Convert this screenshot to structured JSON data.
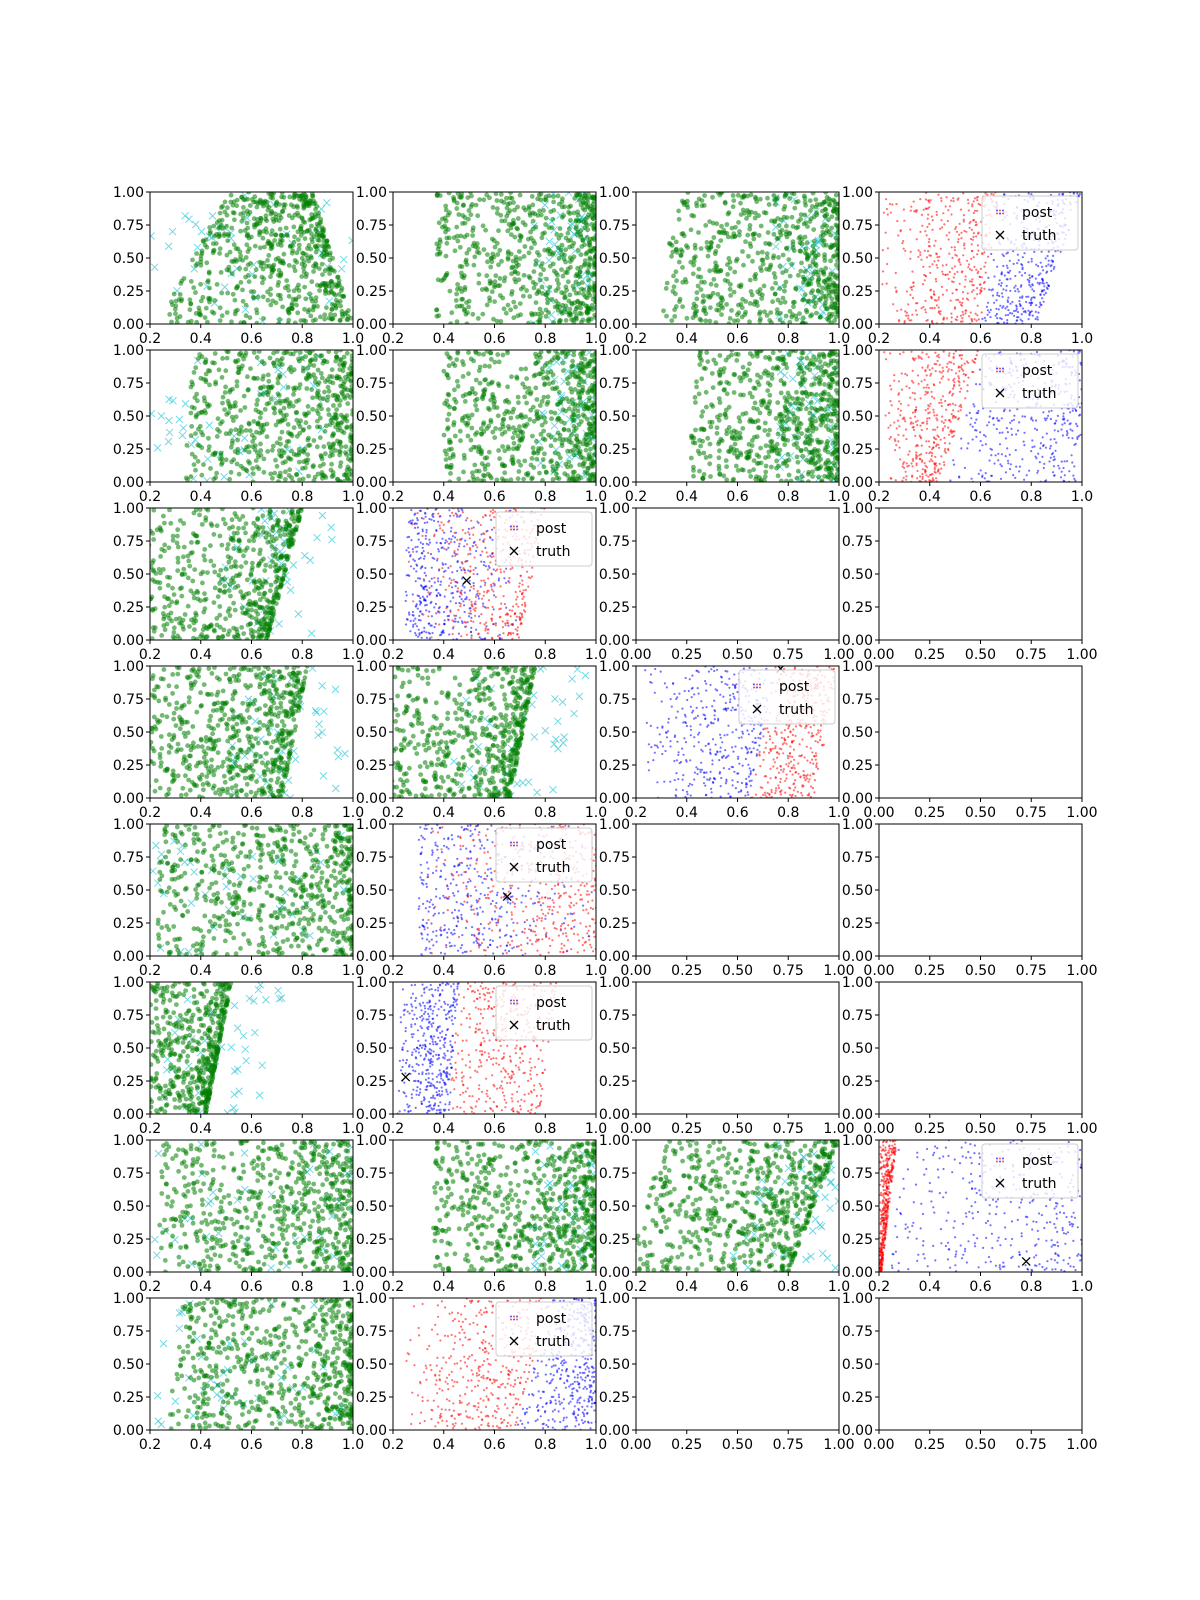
{
  "figure": {
    "layout": "8 rows x 4 columns grid of scatter panels"
  },
  "legend_labels": {
    "post": "post",
    "truth": "truth"
  },
  "colors": {
    "green": "#008000",
    "cyan": "#17becf",
    "red": "#ff0000",
    "blue": "#0000ff",
    "truth": "#000000"
  },
  "chart_data": [
    {
      "row": 0,
      "col": 0,
      "type": "scatter",
      "kind": "ppc",
      "xlim": [
        0.2,
        1.0
      ],
      "ylim": [
        0,
        1
      ],
      "xticks": [
        "0.2",
        "0.4",
        "0.6",
        "0.8",
        "1.0"
      ],
      "yticks": [
        "0.00",
        "0.25",
        "0.50",
        "0.75",
        "1.00"
      ],
      "green_region": {
        "left": [
          0.38,
          0.66
        ],
        "right": [
          1.0,
          0.84
        ],
        "density": 0.5
      },
      "cyan_region": "spread"
    },
    {
      "row": 0,
      "col": 1,
      "type": "scatter",
      "kind": "ppc",
      "xlim": [
        0.2,
        1.0
      ],
      "ylim": [
        0,
        1
      ],
      "xticks": [
        "0.2",
        "0.4",
        "0.6",
        "0.8",
        "1.0"
      ],
      "yticks": [
        "0.00",
        "0.25",
        "0.50",
        "0.75",
        "1.00"
      ],
      "green_region": {
        "left": [
          0.52,
          0.52
        ],
        "right": [
          1.0,
          1.0
        ],
        "density": 0.5
      },
      "cyan_region": "right"
    },
    {
      "row": 0,
      "col": 2,
      "type": "scatter",
      "kind": "ppc",
      "xlim": [
        0.2,
        1.0
      ],
      "ylim": [
        0,
        1
      ],
      "xticks": [
        "0.2",
        "0.4",
        "0.6",
        "0.8",
        "1.0"
      ],
      "yticks": [
        "0.00",
        "0.25",
        "0.50",
        "0.75",
        "1.00"
      ],
      "green_region": {
        "left": [
          0.45,
          0.5
        ],
        "right": [
          1.0,
          1.0
        ],
        "density": 0.5
      },
      "cyan_region": "right"
    },
    {
      "row": 0,
      "col": 3,
      "type": "scatter",
      "kind": "post",
      "xlim": [
        0.2,
        1.0
      ],
      "ylim": [
        0,
        1
      ],
      "xticks": [
        "0.2",
        "0.4",
        "0.6",
        "0.8",
        "1.0"
      ],
      "yticks": [
        "0.00",
        "0.25",
        "0.50",
        "0.75",
        "1.00"
      ],
      "split": {
        "bottom": 0.6,
        "top": 0.66
      },
      "red_side": "left",
      "red_from": 0.2,
      "blue_to": [
        0.82,
        1.0
      ],
      "truth": null,
      "legend": true
    },
    {
      "row": 1,
      "col": 0,
      "type": "scatter",
      "kind": "ppc",
      "xlim": [
        0.2,
        1.0
      ],
      "ylim": [
        0,
        1
      ],
      "xticks": [
        "0.2",
        "0.4",
        "0.6",
        "0.8",
        "1.0"
      ],
      "yticks": [
        "0.00",
        "0.25",
        "0.50",
        "0.75",
        "1.00"
      ],
      "green_region": {
        "left": [
          0.48,
          0.52
        ],
        "right": [
          1.0,
          1.0
        ],
        "density": 0.5
      },
      "cyan_region": "spread"
    },
    {
      "row": 1,
      "col": 1,
      "type": "scatter",
      "kind": "ppc",
      "xlim": [
        0.2,
        1.0
      ],
      "ylim": [
        0,
        1
      ],
      "xticks": [
        "0.2",
        "0.4",
        "0.6",
        "0.8",
        "1.0"
      ],
      "yticks": [
        "0.00",
        "0.25",
        "0.50",
        "0.75",
        "1.00"
      ],
      "green_region": {
        "left": [
          0.55,
          0.55
        ],
        "right": [
          1.0,
          1.0
        ],
        "density": 0.5
      },
      "cyan_region": "right"
    },
    {
      "row": 1,
      "col": 2,
      "type": "scatter",
      "kind": "ppc",
      "xlim": [
        0.2,
        1.0
      ],
      "ylim": [
        0,
        1
      ],
      "xticks": [
        "0.2",
        "0.4",
        "0.6",
        "0.8",
        "1.0"
      ],
      "yticks": [
        "0.00",
        "0.25",
        "0.50",
        "0.75",
        "1.00"
      ],
      "green_region": {
        "left": [
          0.55,
          0.6
        ],
        "right": [
          1.0,
          1.0
        ],
        "density": 0.5
      },
      "cyan_region": "right"
    },
    {
      "row": 1,
      "col": 3,
      "type": "scatter",
      "kind": "post",
      "xlim": [
        0.2,
        1.0
      ],
      "ylim": [
        0,
        1
      ],
      "xticks": [
        "0.2",
        "0.4",
        "0.6",
        "0.8",
        "1.0"
      ],
      "yticks": [
        "0.00",
        "0.25",
        "0.50",
        "0.75",
        "1.00"
      ],
      "split": {
        "bottom": 0.44,
        "top": 0.6
      },
      "red_side": "left",
      "red_from": 0.22,
      "blue_to": [
        1.0,
        1.0
      ],
      "truth": null,
      "legend": true
    },
    {
      "row": 2,
      "col": 0,
      "type": "scatter",
      "kind": "ppc",
      "xlim": [
        0.2,
        1.0
      ],
      "ylim": [
        0,
        1
      ],
      "xticks": [
        "0.2",
        "0.4",
        "0.6",
        "0.8",
        "1.0"
      ],
      "yticks": [
        "0.00",
        "0.25",
        "0.50",
        "0.75",
        "1.00"
      ],
      "green_region": {
        "left": [
          0.2,
          0.2
        ],
        "right": [
          0.66,
          0.8
        ],
        "density": 0.8
      },
      "cyan_region": "right"
    },
    {
      "row": 2,
      "col": 1,
      "type": "scatter",
      "kind": "post",
      "xlim": [
        0.2,
        1.0
      ],
      "ylim": [
        0,
        1
      ],
      "xticks": [
        "0.2",
        "0.4",
        "0.6",
        "0.8",
        "1.0"
      ],
      "yticks": [
        "0.00",
        "0.25",
        "0.50",
        "0.75",
        "1.00"
      ],
      "split": {
        "bottom": 0.55,
        "top": 0.6
      },
      "red_side": "mixed",
      "red_from": 0.25,
      "blue_to": [
        0.7,
        0.8
      ],
      "truth": [
        0.49,
        0.45
      ],
      "legend": true
    },
    {
      "row": 2,
      "col": 2,
      "type": "empty",
      "xlim": [
        0,
        1
      ],
      "ylim": [
        0,
        1
      ],
      "xticks": [
        "0.00",
        "0.25",
        "0.50",
        "0.75",
        "1.00"
      ],
      "yticks": [
        "0.00",
        "0.25",
        "0.50",
        "0.75",
        "1.00"
      ]
    },
    {
      "row": 2,
      "col": 3,
      "type": "empty",
      "xlim": [
        0,
        1
      ],
      "ylim": [
        0,
        1
      ],
      "xticks": [
        "0.00",
        "0.25",
        "0.50",
        "0.75",
        "1.00"
      ],
      "yticks": [
        "0.00",
        "0.25",
        "0.50",
        "0.75",
        "1.00"
      ]
    },
    {
      "row": 3,
      "col": 0,
      "type": "scatter",
      "kind": "ppc",
      "xlim": [
        0.2,
        1.0
      ],
      "ylim": [
        0,
        1
      ],
      "xticks": [
        "0.2",
        "0.4",
        "0.6",
        "0.8",
        "1.0"
      ],
      "yticks": [
        "0.00",
        "0.25",
        "0.50",
        "0.75",
        "1.00"
      ],
      "green_region": {
        "left": [
          0.3,
          0.3
        ],
        "right": [
          0.72,
          0.82
        ],
        "density": 0.7
      },
      "cyan_region": "right"
    },
    {
      "row": 3,
      "col": 1,
      "type": "scatter",
      "kind": "ppc",
      "xlim": [
        0.2,
        1.0
      ],
      "ylim": [
        0,
        1
      ],
      "xticks": [
        "0.2",
        "0.4",
        "0.6",
        "0.8",
        "1.0"
      ],
      "yticks": [
        "0.00",
        "0.25",
        "0.50",
        "0.75",
        "1.00"
      ],
      "green_region": {
        "left": [
          0.2,
          0.2
        ],
        "right": [
          0.66,
          0.76
        ],
        "density": 0.75
      },
      "cyan_region": "right"
    },
    {
      "row": 3,
      "col": 2,
      "type": "scatter",
      "kind": "post",
      "xlim": [
        0.2,
        1.0
      ],
      "ylim": [
        0,
        1
      ],
      "xticks": [
        "0.2",
        "0.4",
        "0.6",
        "0.8",
        "1.0"
      ],
      "yticks": [
        "0.00",
        "0.25",
        "0.50",
        "0.75",
        "1.00"
      ],
      "split": {
        "bottom": 0.65,
        "top": 0.75
      },
      "red_side": "right",
      "red_from": 0.22,
      "blue_to": [
        0.9,
        1.0
      ],
      "truth": [
        0.77,
        0.98
      ],
      "legend": true
    },
    {
      "row": 3,
      "col": 3,
      "type": "empty",
      "xlim": [
        0,
        1
      ],
      "ylim": [
        0,
        1
      ],
      "xticks": [
        "0.00",
        "0.25",
        "0.50",
        "0.75",
        "1.00"
      ],
      "yticks": [
        "0.00",
        "0.25",
        "0.50",
        "0.75",
        "1.00"
      ]
    },
    {
      "row": 4,
      "col": 0,
      "type": "scatter",
      "kind": "ppc",
      "xlim": [
        0.2,
        1.0
      ],
      "ylim": [
        0,
        1
      ],
      "xticks": [
        "0.2",
        "0.4",
        "0.6",
        "0.8",
        "1.0"
      ],
      "yticks": [
        "0.00",
        "0.25",
        "0.50",
        "0.75",
        "1.00"
      ],
      "green_region": {
        "left": [
          0.38,
          0.38
        ],
        "right": [
          1.0,
          1.0
        ],
        "density": 0.5
      },
      "cyan_region": "spread"
    },
    {
      "row": 4,
      "col": 1,
      "type": "scatter",
      "kind": "post",
      "xlim": [
        0.2,
        1.0
      ],
      "ylim": [
        0,
        1
      ],
      "xticks": [
        "0.2",
        "0.4",
        "0.6",
        "0.8",
        "1.0"
      ],
      "yticks": [
        "0.00",
        "0.25",
        "0.50",
        "0.75",
        "1.00"
      ],
      "split": {
        "bottom": 0.7,
        "top": 0.75
      },
      "red_side": "mixed",
      "red_from": 0.3,
      "blue_to": [
        1.0,
        1.0
      ],
      "truth": [
        0.65,
        0.45
      ],
      "legend": true
    },
    {
      "row": 4,
      "col": 2,
      "type": "empty",
      "xlim": [
        0,
        1
      ],
      "ylim": [
        0,
        1
      ],
      "xticks": [
        "0.00",
        "0.25",
        "0.50",
        "0.75",
        "1.00"
      ],
      "yticks": [
        "0.00",
        "0.25",
        "0.50",
        "0.75",
        "1.00"
      ]
    },
    {
      "row": 4,
      "col": 3,
      "type": "empty",
      "xlim": [
        0,
        1
      ],
      "ylim": [
        0,
        1
      ],
      "xticks": [
        "0.00",
        "0.25",
        "0.50",
        "0.75",
        "1.00"
      ],
      "yticks": [
        "0.00",
        "0.25",
        "0.50",
        "0.75",
        "1.00"
      ]
    },
    {
      "row": 5,
      "col": 0,
      "type": "scatter",
      "kind": "ppc",
      "xlim": [
        0.2,
        1.0
      ],
      "ylim": [
        0,
        1
      ],
      "xticks": [
        "0.2",
        "0.4",
        "0.6",
        "0.8",
        "1.0"
      ],
      "yticks": [
        "0.00",
        "0.25",
        "0.50",
        "0.75",
        "1.00"
      ],
      "green_region": {
        "left": [
          0.2,
          0.2
        ],
        "right": [
          0.42,
          0.52
        ],
        "density": 1.0
      },
      "cyan_region": "right"
    },
    {
      "row": 5,
      "col": 1,
      "type": "scatter",
      "kind": "post",
      "xlim": [
        0.2,
        1.0
      ],
      "ylim": [
        0,
        1
      ],
      "xticks": [
        "0.2",
        "0.4",
        "0.6",
        "0.8",
        "1.0"
      ],
      "yticks": [
        "0.00",
        "0.25",
        "0.50",
        "0.75",
        "1.00"
      ],
      "split": {
        "bottom": 0.42,
        "top": 0.46
      },
      "red_side": "right",
      "red_from": 0.21,
      "blue_to": [
        0.78,
        0.85
      ],
      "truth": [
        0.25,
        0.28
      ],
      "legend": true
    },
    {
      "row": 5,
      "col": 2,
      "type": "empty",
      "xlim": [
        0,
        1
      ],
      "ylim": [
        0,
        1
      ],
      "xticks": [
        "0.00",
        "0.25",
        "0.50",
        "0.75",
        "1.00"
      ],
      "yticks": [
        "0.00",
        "0.25",
        "0.50",
        "0.75",
        "1.00"
      ]
    },
    {
      "row": 5,
      "col": 3,
      "type": "empty",
      "xlim": [
        0,
        1
      ],
      "ylim": [
        0,
        1
      ],
      "xticks": [
        "0.00",
        "0.25",
        "0.50",
        "0.75",
        "1.00"
      ],
      "yticks": [
        "0.00",
        "0.25",
        "0.50",
        "0.75",
        "1.00"
      ]
    },
    {
      "row": 6,
      "col": 0,
      "type": "scatter",
      "kind": "ppc",
      "xlim": [
        0.2,
        1.0
      ],
      "ylim": [
        0,
        1
      ],
      "xticks": [
        "0.2",
        "0.4",
        "0.6",
        "0.8",
        "1.0"
      ],
      "yticks": [
        "0.00",
        "0.25",
        "0.50",
        "0.75",
        "1.00"
      ],
      "green_region": {
        "left": [
          0.38,
          0.4
        ],
        "right": [
          1.0,
          1.0
        ],
        "density": 0.5
      },
      "cyan_region": "spread"
    },
    {
      "row": 6,
      "col": 1,
      "type": "scatter",
      "kind": "ppc",
      "xlim": [
        0.2,
        1.0
      ],
      "ylim": [
        0,
        1
      ],
      "xticks": [
        "0.2",
        "0.4",
        "0.6",
        "0.8",
        "1.0"
      ],
      "yticks": [
        "0.00",
        "0.25",
        "0.50",
        "0.75",
        "1.00"
      ],
      "green_region": {
        "left": [
          0.5,
          0.52
        ],
        "right": [
          1.0,
          1.0
        ],
        "density": 0.5
      },
      "cyan_region": "right"
    },
    {
      "row": 6,
      "col": 2,
      "type": "scatter",
      "kind": "ppc",
      "xlim": [
        0.2,
        1.0
      ],
      "ylim": [
        0,
        1
      ],
      "xticks": [
        "0.2",
        "0.4",
        "0.6",
        "0.8",
        "1.0"
      ],
      "yticks": [
        "0.00",
        "0.25",
        "0.50",
        "0.75",
        "1.00"
      ],
      "green_region": {
        "left": [
          0.32,
          0.45
        ],
        "right": [
          0.8,
          1.0
        ],
        "density": 0.6
      },
      "cyan_region": "right"
    },
    {
      "row": 6,
      "col": 3,
      "type": "scatter",
      "kind": "post",
      "xlim": [
        0.2,
        1.0
      ],
      "ylim": [
        0,
        1
      ],
      "xticks": [
        "0.2",
        "0.4",
        "0.6",
        "0.8",
        "1.0"
      ],
      "yticks": [
        "0.00",
        "0.25",
        "0.50",
        "0.75",
        "1.00"
      ],
      "split": {
        "bottom": 0.21,
        "top": 0.27
      },
      "red_side": "left",
      "red_from": 0.2,
      "blue_to": [
        1.0,
        1.0
      ],
      "truth": [
        0.78,
        0.08
      ],
      "legend": true
    },
    {
      "row": 7,
      "col": 0,
      "type": "scatter",
      "kind": "ppc",
      "xlim": [
        0.2,
        1.0
      ],
      "ylim": [
        0,
        1
      ],
      "xticks": [
        "0.2",
        "0.4",
        "0.6",
        "0.8",
        "1.0"
      ],
      "yticks": [
        "0.00",
        "0.25",
        "0.50",
        "0.75",
        "1.00"
      ],
      "green_region": {
        "left": [
          0.42,
          0.48
        ],
        "right": [
          1.0,
          1.0
        ],
        "density": 0.5
      },
      "cyan_region": "spread"
    },
    {
      "row": 7,
      "col": 1,
      "type": "scatter",
      "kind": "post",
      "xlim": [
        0.2,
        1.0
      ],
      "ylim": [
        0,
        1
      ],
      "xticks": [
        "0.2",
        "0.4",
        "0.6",
        "0.8",
        "1.0"
      ],
      "yticks": [
        "0.00",
        "0.25",
        "0.50",
        "0.75",
        "1.00"
      ],
      "split": {
        "bottom": 0.68,
        "top": 0.82
      },
      "red_side": "left",
      "red_from": 0.22,
      "blue_to": [
        1.0,
        1.0
      ],
      "truth": null,
      "legend": true
    },
    {
      "row": 7,
      "col": 2,
      "type": "empty",
      "xlim": [
        0,
        1
      ],
      "ylim": [
        0,
        1
      ],
      "xticks": [
        "0.00",
        "0.25",
        "0.50",
        "0.75",
        "1.00"
      ],
      "yticks": [
        "0.00",
        "0.25",
        "0.50",
        "0.75",
        "1.00"
      ]
    },
    {
      "row": 7,
      "col": 3,
      "type": "empty",
      "xlim": [
        0,
        1
      ],
      "ylim": [
        0,
        1
      ],
      "xticks": [
        "0.00",
        "0.25",
        "0.50",
        "0.75",
        "1.00"
      ],
      "yticks": [
        "0.00",
        "0.25",
        "0.50",
        "0.75",
        "1.00"
      ]
    }
  ]
}
